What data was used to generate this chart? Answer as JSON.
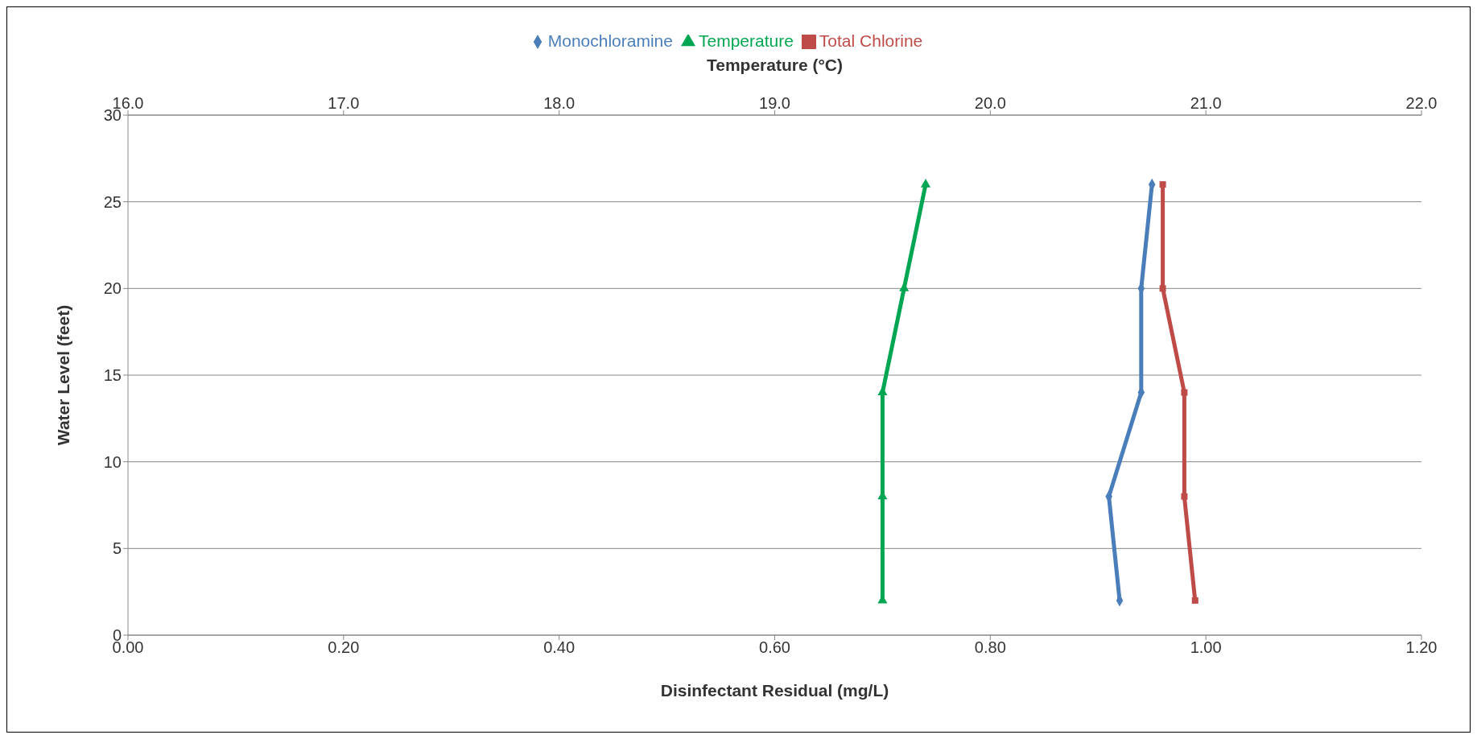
{
  "chart_data": {
    "type": "line",
    "xlabel": "Disinfectant Residual (mg/L)",
    "x2label": "Temperature (°C)",
    "ylabel": "Water Level (feet)",
    "series": [
      {
        "name": "Monochloramine",
        "color": "#4a7ebb",
        "marker": "diamond",
        "x": [
          0.95,
          0.94,
          0.94,
          0.91,
          0.92
        ],
        "values": [
          26,
          20,
          14,
          8,
          2
        ]
      },
      {
        "name": "Total Chlorine",
        "color": "#be4b48",
        "marker": "square",
        "x": [
          0.96,
          0.96,
          0.98,
          0.98,
          0.99
        ],
        "values": [
          26,
          20,
          14,
          8,
          2
        ]
      },
      {
        "name": "Temperature",
        "color": "#00a651",
        "marker": "triangle",
        "axis": "x2",
        "x": [
          19.7,
          19.6,
          19.5,
          19.5,
          19.5
        ],
        "values": [
          26,
          20,
          14,
          8,
          2
        ]
      }
    ],
    "xlim": [
      0,
      1.2
    ],
    "xticks": [
      {
        "value": 0,
        "label": "0.00"
      },
      {
        "value": 0.2,
        "label": "0.20"
      },
      {
        "value": 0.4,
        "label": "0.40"
      },
      {
        "value": 0.6,
        "label": "0.60"
      },
      {
        "value": 0.8,
        "label": "0.80"
      },
      {
        "value": 1,
        "label": "1.00"
      },
      {
        "value": 1.2,
        "label": "1.20"
      }
    ],
    "x2lim": [
      16,
      22
    ],
    "x2ticks": [
      {
        "value": 16,
        "label": "16.0"
      },
      {
        "value": 17,
        "label": "17.0"
      },
      {
        "value": 18,
        "label": "18.0"
      },
      {
        "value": 19,
        "label": "19.0"
      },
      {
        "value": 20,
        "label": "20.0"
      },
      {
        "value": 21,
        "label": "21.0"
      },
      {
        "value": 22,
        "label": "22.0"
      }
    ],
    "ylim": [
      0,
      30
    ],
    "yticks": [
      0,
      5,
      10,
      15,
      20,
      25,
      30
    ],
    "grid": "y",
    "legend": "top"
  }
}
